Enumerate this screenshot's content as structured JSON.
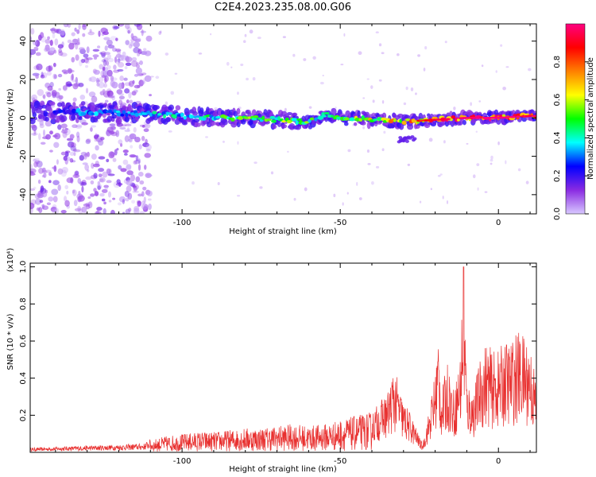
{
  "title": "C2E4.2023.235.08.00.G06",
  "chart_data": [
    {
      "type": "heatmap",
      "xlabel": "Height of straight line (km)",
      "ylabel": "Frequency (Hz)",
      "xlim": [
        -148,
        12
      ],
      "ylim": [
        -50,
        49
      ],
      "xticks": [
        -100,
        -50,
        0
      ],
      "xtick_labels": [
        "-100",
        "-50",
        "0"
      ],
      "yticks": [
        -40,
        -20,
        0,
        20,
        40
      ],
      "ytick_labels": [
        "-40",
        "-20",
        "0",
        "20",
        "40"
      ],
      "colorbar": {
        "label": "Normalized spectral amplitude",
        "range": [
          0,
          1
        ],
        "ticks": [
          0.0,
          0.2,
          0.4,
          0.6,
          0.8
        ],
        "tick_labels": [
          "0.0",
          "0.2",
          "0.4",
          "0.6",
          "0.8"
        ],
        "colors": [
          "#d8c8ff",
          "#8a2be2",
          "#0000ff",
          "#00ffff",
          "#00ff00",
          "#ffff00",
          "#ff8000",
          "#ff0000",
          "#ff0080"
        ]
      },
      "ridge": {
        "x": [
          -145,
          -130,
          -110,
          -100,
          -90,
          -80,
          -70,
          -60,
          -55,
          -50,
          -45,
          -40,
          -30,
          -20,
          -10,
          0,
          10
        ],
        "frequency": [
          3,
          3,
          2,
          1,
          0,
          0,
          -1,
          -2,
          2,
          0,
          0,
          -1,
          -2,
          -1,
          0,
          0,
          1
        ],
        "peak_amplitude": [
          0.25,
          0.35,
          0.4,
          0.45,
          0.5,
          0.55,
          0.6,
          0.55,
          0.5,
          0.55,
          0.6,
          0.7,
          0.75,
          0.85,
          0.95,
          1.0,
          0.9
        ]
      },
      "grid": false
    },
    {
      "type": "line",
      "xlabel": "Height of straight line (km)",
      "ylabel": "SNR (10 * v/v)",
      "yscale_note": "(x10⁴)",
      "xlim": [
        -148,
        12
      ],
      "ylim": [
        0,
        1.02
      ],
      "xticks": [
        -100,
        -50,
        0
      ],
      "xtick_labels": [
        "-100",
        "-50",
        "0"
      ],
      "yticks": [
        0.2,
        0.4,
        0.6,
        0.8,
        1.0
      ],
      "ytick_labels": [
        "0.2",
        "0.4",
        "0.6",
        "0.8",
        "1.0"
      ],
      "series": [
        {
          "color": "#e8302f",
          "x": [
            -148,
            -140,
            -130,
            -120,
            -112,
            -110,
            -105,
            -100,
            -95,
            -90,
            -85,
            -80,
            -75,
            -70,
            -65,
            -60,
            -55,
            -50,
            -45,
            -40,
            -35,
            -33,
            -30,
            -28,
            -26,
            -24,
            -22,
            -20,
            -19,
            -18,
            -16,
            -14,
            -12,
            -11,
            -10,
            -8,
            -6,
            -4,
            -2,
            0,
            2,
            4,
            6,
            8,
            10,
            12
          ],
          "y": [
            0.02,
            0.025,
            0.03,
            0.035,
            0.04,
            0.06,
            0.08,
            0.09,
            0.1,
            0.1,
            0.11,
            0.12,
            0.12,
            0.13,
            0.14,
            0.13,
            0.14,
            0.16,
            0.18,
            0.2,
            0.3,
            0.42,
            0.25,
            0.2,
            0.12,
            0.04,
            0.2,
            0.4,
            0.6,
            0.3,
            0.45,
            0.3,
            0.5,
            1.0,
            0.35,
            0.3,
            0.45,
            0.55,
            0.5,
            0.5,
            0.55,
            0.55,
            0.6,
            0.58,
            0.55,
            0.35
          ]
        }
      ],
      "grid": false
    }
  ]
}
